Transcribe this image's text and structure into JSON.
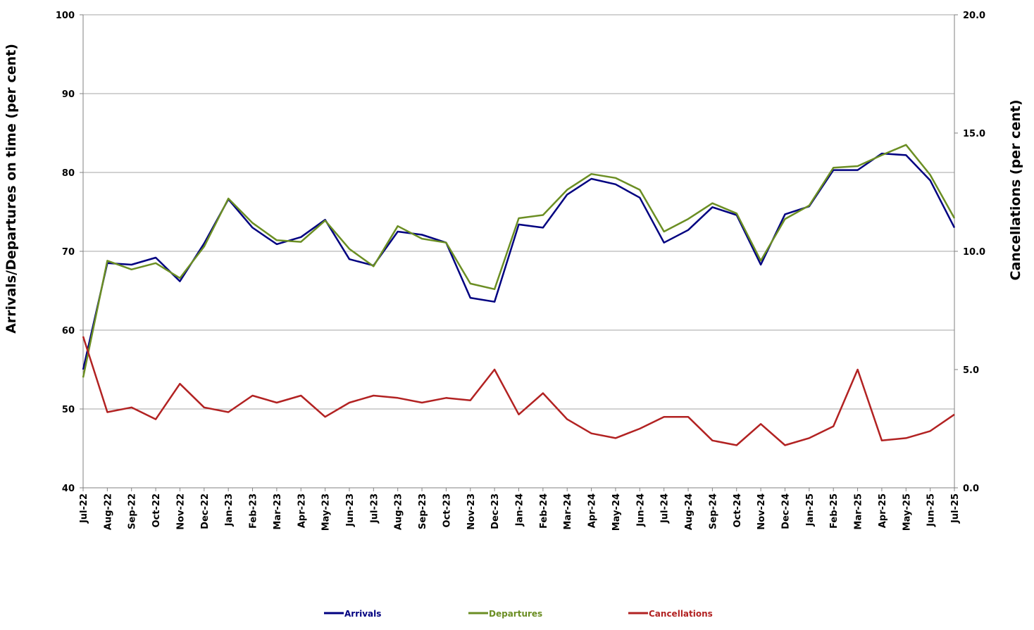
{
  "chart_data": {
    "type": "line",
    "title": "",
    "categories": [
      "Jul-22",
      "Aug-22",
      "Sep-22",
      "Oct-22",
      "Nov-22",
      "Dec-22",
      "Jan-23",
      "Feb-23",
      "Mar-23",
      "Apr-23",
      "May-23",
      "Jun-23",
      "Jul-23",
      "Aug-23",
      "Sep-23",
      "Oct-23",
      "Nov-23",
      "Dec-23",
      "Jan-24",
      "Feb-24",
      "Mar-24",
      "Apr-24",
      "May-24",
      "Jun-24",
      "Jul-24",
      "Aug-24",
      "Sep-24",
      "Oct-24",
      "Nov-24",
      "Dec-24",
      "Jan-25",
      "Feb-25",
      "Mar-25",
      "Apr-25",
      "May-25",
      "Jun-25",
      "Jul-25"
    ],
    "ylabel": "Arrivals/Departures on time (per cent)",
    "y2label": "Cancellations (per cent)",
    "ylim": [
      40,
      100
    ],
    "y2lim": [
      0,
      20
    ],
    "yticks": [
      "40",
      "50",
      "60",
      "70",
      "80",
      "90",
      "100"
    ],
    "y2ticks": [
      "0.0",
      "5.0",
      "10.0",
      "15.0",
      "20.0"
    ],
    "grid": true,
    "legend_position": "bottom",
    "series": [
      {
        "name": "Arrivals",
        "axis": "left",
        "color": "#000080",
        "values": [
          55.0,
          68.5,
          68.3,
          69.2,
          66.2,
          71.0,
          76.6,
          73.0,
          70.9,
          71.8,
          74.0,
          69.0,
          68.2,
          72.5,
          72.1,
          71.1,
          64.1,
          63.6,
          73.4,
          73.0,
          77.2,
          79.2,
          78.5,
          76.8,
          71.1,
          72.7,
          75.6,
          74.6,
          68.3,
          74.7,
          75.7,
          80.3,
          80.3,
          82.4,
          82.2,
          79.0,
          73.0
        ]
      },
      {
        "name": "Departures",
        "axis": "left",
        "color": "#6B8E23",
        "values": [
          54.0,
          68.8,
          67.7,
          68.5,
          66.6,
          70.6,
          76.7,
          73.6,
          71.4,
          71.2,
          73.9,
          70.3,
          68.1,
          73.2,
          71.6,
          71.1,
          65.9,
          65.2,
          74.2,
          74.6,
          77.8,
          79.8,
          79.3,
          77.8,
          72.5,
          74.1,
          76.1,
          74.8,
          68.8,
          74.1,
          75.8,
          80.6,
          80.8,
          82.2,
          83.5,
          79.7,
          74.2
        ]
      },
      {
        "name": "Cancellations",
        "axis": "right",
        "color": "#B22222",
        "values": [
          6.4,
          3.2,
          3.4,
          2.9,
          4.4,
          3.4,
          3.2,
          3.9,
          3.6,
          3.9,
          3.0,
          3.6,
          3.9,
          3.8,
          3.6,
          3.8,
          3.7,
          5.0,
          3.1,
          4.0,
          2.9,
          2.3,
          2.1,
          2.5,
          3.0,
          3.0,
          2.0,
          1.8,
          2.7,
          1.8,
          2.1,
          2.6,
          5.0,
          2.0,
          2.1,
          2.4,
          3.1
        ]
      }
    ]
  }
}
